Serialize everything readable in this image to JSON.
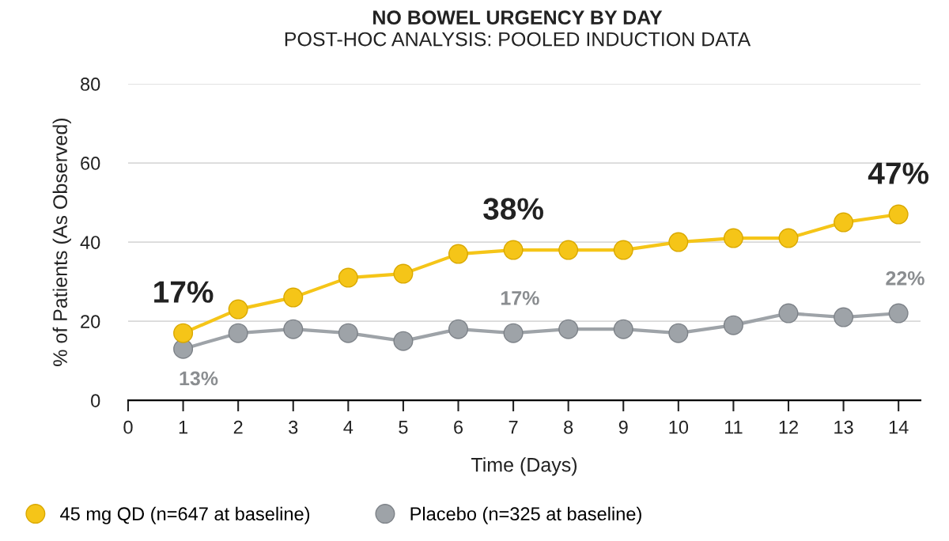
{
  "chart_data": {
    "type": "line",
    "title": "NO BOWEL URGENCY BY DAY",
    "subtitle": "POST-HOC ANALYSIS: POOLED INDUCTION DATA",
    "xlabel": "Time (Days)",
    "ylabel": "% of Patients (As Observed)",
    "x": [
      1,
      2,
      3,
      4,
      5,
      6,
      7,
      8,
      9,
      10,
      11,
      12,
      13,
      14
    ],
    "series": [
      {
        "name": "45 mg QD (n=647 at baseline)",
        "color": "#f5c518",
        "values": [
          17,
          23,
          26,
          31,
          32,
          37,
          38,
          38,
          38,
          40,
          41,
          41,
          45,
          47
        ]
      },
      {
        "name": "Placebo (n=325 at baseline)",
        "color": "#9ea3a8",
        "values": [
          13,
          17,
          18,
          17,
          15,
          18,
          17,
          18,
          18,
          17,
          19,
          22,
          21,
          22
        ]
      }
    ],
    "xlim": [
      0,
      14.4
    ],
    "xticks": [
      0,
      1,
      2,
      3,
      4,
      5,
      6,
      7,
      8,
      9,
      10,
      11,
      12,
      13,
      14
    ],
    "ylim": [
      0,
      80
    ],
    "yticks": [
      0,
      20,
      40,
      60,
      80
    ],
    "grid": "y",
    "legend": "bottom",
    "marker": "circle",
    "line_style": "solid",
    "annotations": [
      {
        "text": "17%",
        "x": 1,
        "y": 17
      },
      {
        "text": "38%",
        "x": 7,
        "y": 38
      },
      {
        "text": "47%",
        "x": 14,
        "y": 47
      },
      {
        "text": "13%",
        "x": 1,
        "y": 13
      },
      {
        "text": "17%",
        "x": 7,
        "y": 17
      },
      {
        "text": "22%",
        "x": 14,
        "y": 22
      }
    ]
  }
}
